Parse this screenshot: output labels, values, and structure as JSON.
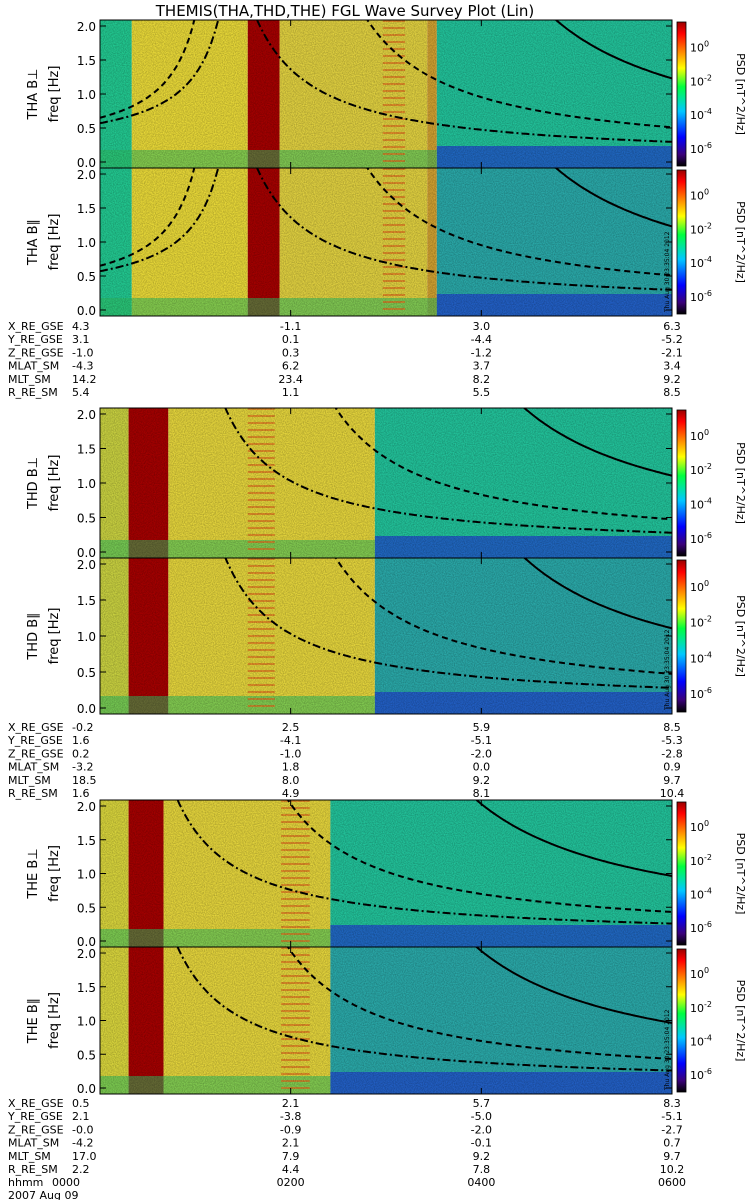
{
  "title": "THEMIS(THA,THD,THE) FGL Wave Survey Plot (Lin)",
  "stamp": "Thu Aug 30 23:35:04 2012",
  "colors": {
    "background": "#ffffff",
    "text": "#000000",
    "curve": "#000000"
  },
  "colorbar": {
    "label": "PSD [nT^2/Hz]",
    "ticks": [
      "10^0",
      "10^-2",
      "10^-4",
      "10^-6"
    ],
    "log_range": [
      -7,
      1.5
    ],
    "scale": "log"
  },
  "chart_data": {
    "type": "heatmap",
    "x_unit": "hhmm",
    "x_range": [
      "0000",
      "0600"
    ],
    "y_range": [
      0,
      2
    ],
    "y_ticks": [
      "0.0",
      "0.5",
      "1.0",
      "1.5",
      "2.0"
    ],
    "curves": [
      "solid (lower-right, decreasing)",
      "dashed",
      "dash-dot"
    ],
    "panels": [
      {
        "probe": "THA",
        "component": "B⊥",
        "ylabel": "freq [Hz]"
      },
      {
        "probe": "THA",
        "component": "B∥",
        "ylabel": "freq [Hz]"
      },
      {
        "probe": "THD",
        "component": "B⊥",
        "ylabel": "freq [Hz]"
      },
      {
        "probe": "THD",
        "component": "B∥",
        "ylabel": "freq [Hz]"
      },
      {
        "probe": "THE",
        "component": "B⊥",
        "ylabel": "freq [Hz]"
      },
      {
        "probe": "THE",
        "component": "B∥",
        "ylabel": "freq [Hz]"
      }
    ],
    "ephemeris": [
      {
        "probe": "THA",
        "rows": [
          {
            "name": "X_RE_GSE",
            "values": [
              "4.3",
              "-1.1",
              "3.0",
              "6.3"
            ]
          },
          {
            "name": "Y_RE_GSE",
            "values": [
              "3.1",
              "0.1",
              "-4.4",
              "-5.2"
            ]
          },
          {
            "name": "Z_RE_GSE",
            "values": [
              "-1.0",
              "0.3",
              "-1.2",
              "-2.1"
            ]
          },
          {
            "name": "MLAT_SM",
            "values": [
              "-4.3",
              "6.2",
              "3.7",
              "3.4"
            ]
          },
          {
            "name": "MLT_SM",
            "values": [
              "14.2",
              "23.4",
              "8.2",
              "9.2"
            ]
          },
          {
            "name": "R_RE_SM",
            "values": [
              "5.4",
              "1.1",
              "5.5",
              "8.5"
            ]
          }
        ]
      },
      {
        "probe": "THD",
        "rows": [
          {
            "name": "X_RE_GSE",
            "values": [
              "-0.2",
              "2.5",
              "5.9",
              "8.5"
            ]
          },
          {
            "name": "Y_RE_GSE",
            "values": [
              "1.6",
              "-4.1",
              "-5.1",
              "-5.3"
            ]
          },
          {
            "name": "Z_RE_GSE",
            "values": [
              "0.2",
              "-1.0",
              "-2.0",
              "-2.8"
            ]
          },
          {
            "name": "MLAT_SM",
            "values": [
              "-3.2",
              "1.8",
              "0.0",
              "0.9"
            ]
          },
          {
            "name": "MLT_SM",
            "values": [
              "18.5",
              "8.0",
              "9.2",
              "9.7"
            ]
          },
          {
            "name": "R_RE_SM",
            "values": [
              "1.6",
              "4.9",
              "8.1",
              "10.4"
            ]
          }
        ]
      },
      {
        "probe": "THE",
        "rows": [
          {
            "name": "X_RE_GSE",
            "values": [
              "0.5",
              "2.1",
              "5.7",
              "8.3"
            ]
          },
          {
            "name": "Y_RE_GSE",
            "values": [
              "2.1",
              "-3.8",
              "-5.0",
              "-5.1"
            ]
          },
          {
            "name": "Z_RE_GSE",
            "values": [
              "-0.0",
              "-0.9",
              "-2.0",
              "-2.7"
            ]
          },
          {
            "name": "MLAT_SM",
            "values": [
              "-4.2",
              "2.1",
              "-0.1",
              "0.7"
            ]
          },
          {
            "name": "MLT_SM",
            "values": [
              "17.0",
              "7.9",
              "9.2",
              "9.7"
            ]
          },
          {
            "name": "R_RE_SM",
            "values": [
              "2.2",
              "4.4",
              "7.8",
              "10.2"
            ]
          }
        ]
      }
    ],
    "time_row": {
      "name": "hhmm",
      "values": [
        "0000",
        "0200",
        "0400",
        "0600"
      ]
    },
    "date": "2007 Aug 09"
  }
}
